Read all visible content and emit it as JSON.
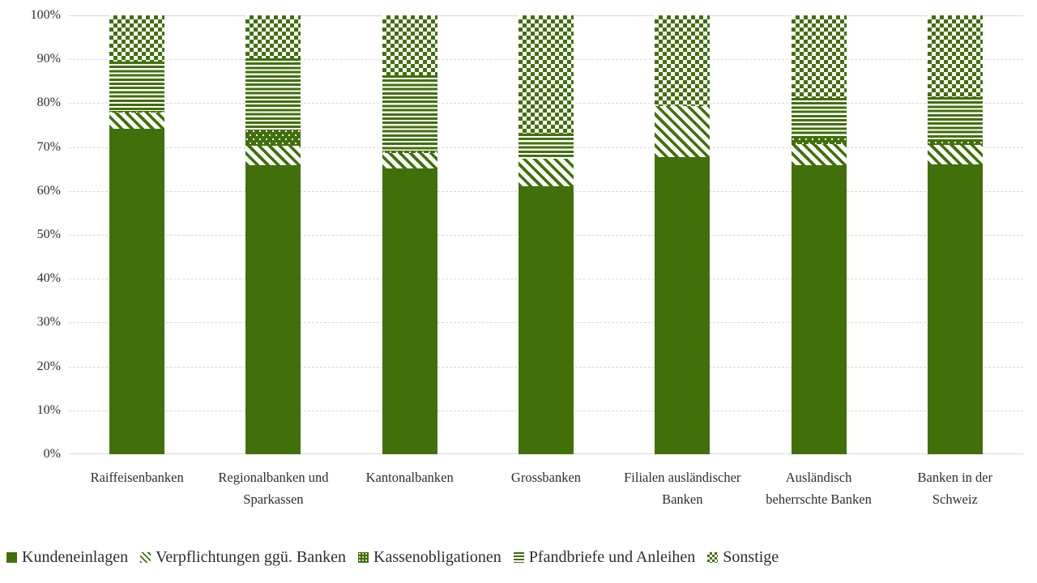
{
  "chart_data": {
    "type": "bar",
    "subtype": "stacked-100-percent",
    "title": "",
    "xlabel": "",
    "ylabel": "",
    "ylim": [
      0,
      100
    ],
    "grid": "horizontal-dashed",
    "legend_position": "bottom",
    "y_ticks": [
      "0%",
      "10%",
      "20%",
      "30%",
      "40%",
      "50%",
      "60%",
      "70%",
      "80%",
      "90%",
      "100%"
    ],
    "categories": [
      "Raiffeisenbanken",
      "Regionalbanken und Sparkassen",
      "Kantonalbanken",
      "Grossbanken",
      "Filialen ausländischer Banken",
      "Ausländisch beherrschte Banken",
      "Banken in der Schweiz"
    ],
    "series": [
      {
        "name": "Kundeneinlagen",
        "pattern": "solid",
        "values": [
          74.1,
          65.9,
          65.1,
          61.1,
          67.7,
          65.8,
          66.0
        ]
      },
      {
        "name": "Verpflichtungen ggü. Banken",
        "pattern": "diagonal-stripes",
        "values": [
          3.7,
          4.4,
          3.6,
          6.2,
          11.7,
          4.9,
          4.5
        ]
      },
      {
        "name": "Kassenobligationen",
        "pattern": "dots",
        "values": [
          0.4,
          3.6,
          0.5,
          0.0,
          0.0,
          1.4,
          1.0
        ]
      },
      {
        "name": "Pfandbriefe und Anleihen",
        "pattern": "horizontal-stripes",
        "values": [
          11.3,
          16.4,
          17.2,
          5.7,
          0.0,
          9.0,
          9.8
        ]
      },
      {
        "name": "Sonstige",
        "pattern": "checkerboard",
        "values": [
          10.5,
          9.7,
          13.6,
          27.0,
          20.6,
          18.9,
          18.7
        ]
      }
    ],
    "colors": {
      "series_green": "#41700B",
      "background": "#FFFFFF",
      "gridline": "#D9D9D9",
      "text": "#2E2E2E"
    }
  }
}
